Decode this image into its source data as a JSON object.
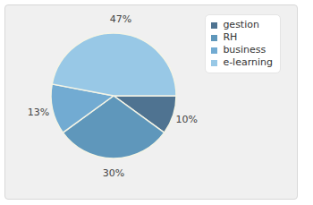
{
  "chart_data": {
    "type": "pie",
    "categories": [
      "gestion",
      "RH",
      "business",
      "e-learning"
    ],
    "values": [
      10,
      30,
      13,
      47
    ],
    "value_labels": [
      "10%",
      "30%",
      "13%",
      "47%"
    ],
    "colors": [
      "#4f7391",
      "#5f97bb",
      "#72abd2",
      "#98c8e6"
    ],
    "data_labels": true,
    "legend": "top-right"
  }
}
